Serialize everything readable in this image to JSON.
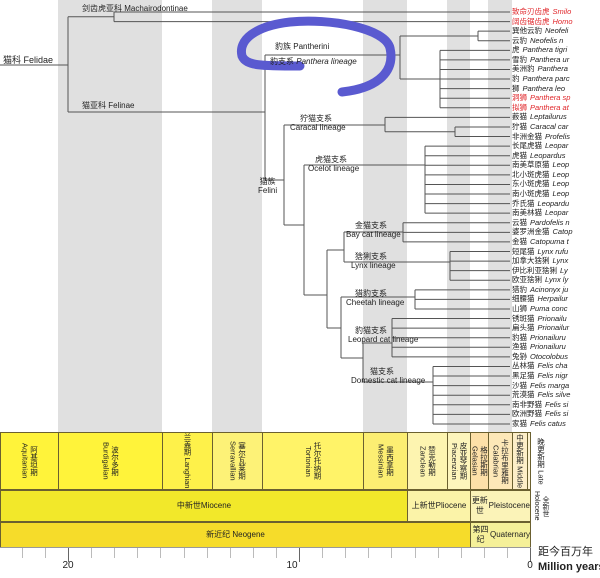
{
  "tree": {
    "root": {
      "zh": "猫科",
      "en": "Felidae"
    },
    "machairodontinae": {
      "zh": "剑齿虎亚科",
      "en": "Machairodontinae"
    },
    "felinae": {
      "zh": "猫亚科",
      "en": "Felinae"
    },
    "pantherini": {
      "zh": "豹族",
      "en": "Pantherini"
    },
    "panthera_lineage": {
      "zh": "豹支系",
      "en": "Panthera lineage"
    },
    "felini": {
      "zh": "猫族",
      "en": "Felini"
    },
    "caracal": {
      "zh": "狞猫支系",
      "en": "Caracal lineage"
    },
    "ocelot": {
      "zh": "虎猫支系",
      "en": "Ocelot lineage"
    },
    "baycat": {
      "zh": "金猫支系",
      "en": "Bay cat lineage"
    },
    "lynx": {
      "zh": "猞猁支系",
      "en": "Lynx lineage"
    },
    "cheetah": {
      "zh": "猎豹支系",
      "en": "Cheetah lineage"
    },
    "leopardcat": {
      "zh": "豹猫支系",
      "en": "Leopard cat lineage"
    },
    "domestic": {
      "zh": "猫支系",
      "en": "Domestic cat lineage"
    }
  },
  "species": [
    {
      "zh": "致命刃齿虎",
      "la": "Smilo",
      "extinct": true
    },
    {
      "zh": "阔齿锯齿虎",
      "la": "Homo",
      "extinct": true
    },
    {
      "zh": "巽他云豹",
      "la": "Neofeli",
      "extinct": false
    },
    {
      "zh": "云豹",
      "la": "Neofelis n",
      "extinct": false
    },
    {
      "zh": "虎",
      "la": "Panthera tigri",
      "extinct": false
    },
    {
      "zh": "雪豹",
      "la": "Panthera ur",
      "extinct": false
    },
    {
      "zh": "美洲豹",
      "la": "Panthera",
      "extinct": false
    },
    {
      "zh": "豹",
      "la": "Panthera parc",
      "extinct": false
    },
    {
      "zh": "狮",
      "la": "Panthera leo",
      "extinct": false
    },
    {
      "zh": "洞狮",
      "la": "Panthera sp",
      "extinct": true
    },
    {
      "zh": "拟狮",
      "la": "Panthera at",
      "extinct": true
    },
    {
      "zh": "薮猫",
      "la": "Leptailurus",
      "extinct": false
    },
    {
      "zh": "狞猫",
      "la": "Caracal car",
      "extinct": false
    },
    {
      "zh": "非洲金猫",
      "la": "Profelis",
      "extinct": false
    },
    {
      "zh": "长尾虎猫",
      "la": "Leopar",
      "extinct": false
    },
    {
      "zh": "虎猫",
      "la": "Leopardus",
      "extinct": false
    },
    {
      "zh": "南美草原猫",
      "la": "Leop",
      "extinct": false
    },
    {
      "zh": "北小斑虎猫",
      "la": "Leop",
      "extinct": false
    },
    {
      "zh": "东小斑虎猫",
      "la": "Leop",
      "extinct": false
    },
    {
      "zh": "南小斑虎猫",
      "la": "Leop",
      "extinct": false
    },
    {
      "zh": "乔氏猫",
      "la": "Leopardu",
      "extinct": false
    },
    {
      "zh": "南美林猫",
      "la": "Leopar",
      "extinct": false
    },
    {
      "zh": "云猫",
      "la": "Pardofelis n",
      "extinct": false
    },
    {
      "zh": "婆罗洲金猫",
      "la": "Catop",
      "extinct": false
    },
    {
      "zh": "金猫",
      "la": "Catopuma t",
      "extinct": false
    },
    {
      "zh": "短尾猫",
      "la": "Lynx rufu",
      "extinct": false
    },
    {
      "zh": "加拿大猞猁",
      "la": "Lynx",
      "extinct": false
    },
    {
      "zh": "伊比利亚猞猁",
      "la": "Ly",
      "extinct": false
    },
    {
      "zh": "欧亚猞猁",
      "la": "Lynx ly",
      "extinct": false
    },
    {
      "zh": "猎豹",
      "la": "Acinonyx ju",
      "extinct": false
    },
    {
      "zh": "细腰猫",
      "la": "Herpailur",
      "extinct": false
    },
    {
      "zh": "山狮",
      "la": "Puma conc",
      "extinct": false
    },
    {
      "zh": "锈斑猫",
      "la": "Prionailu",
      "extinct": false
    },
    {
      "zh": "扁头猫",
      "la": "Prionailur",
      "extinct": false
    },
    {
      "zh": "豹猫",
      "la": "Prionailuru",
      "extinct": false
    },
    {
      "zh": "渔猫",
      "la": "Prionailuru",
      "extinct": false
    },
    {
      "zh": "兔狲",
      "la": "Otocolobus",
      "extinct": false
    },
    {
      "zh": "丛林猫",
      "la": "Felis cha",
      "extinct": false
    },
    {
      "zh": "黑足猫",
      "la": "Felis nigr",
      "extinct": false
    },
    {
      "zh": "沙猫",
      "la": "Felis marga",
      "extinct": false
    },
    {
      "zh": "荒漠猫",
      "la": "Felis silve",
      "extinct": false
    },
    {
      "zh": "南非野猫",
      "la": "Felis si",
      "extinct": false
    },
    {
      "zh": "欧洲野猫",
      "la": "Felis si",
      "extinct": false
    },
    {
      "zh": "家猫",
      "la": "Felis catus",
      "extinct": false
    }
  ],
  "timescale": {
    "stages": [
      {
        "zh": "阿基坦期",
        "en": "Aquitanian",
        "color": "#fff33a"
      },
      {
        "zh": "波尔多期",
        "en": "Burdigalian",
        "color": "#fff33a"
      },
      {
        "zh": "兰盖期",
        "en": "Langhian",
        "color": "#fef14a"
      },
      {
        "zh": "塞尔瓦莱期",
        "en": "Serravallian",
        "color": "#fdf277"
      },
      {
        "zh": "托尔托纳期",
        "en": "Tortonian",
        "color": "#fff368"
      },
      {
        "zh": "墨西拿期",
        "en": "Messinian",
        "color": "#fcee72"
      },
      {
        "zh": "赞克勒期",
        "en": "Zanclean",
        "color": "#fdf4b0"
      },
      {
        "zh": "皮亚琴察期",
        "en": "Piacenzian",
        "color": "#fdf5bc"
      },
      {
        "zh": "格拉斯期",
        "en": "Gelasian",
        "color": "#fde0a8"
      },
      {
        "zh": "卡拉布里雅期",
        "en": "Calabrian",
        "color": "#fde8b8"
      },
      {
        "zh": "中更新期",
        "en": "Middle",
        "color": "#fdeec8"
      }
    ],
    "late": {
      "zh": "晚更新期",
      "en": "Late"
    },
    "holocene": {
      "zh": "全新世",
      "en": "Holocene"
    },
    "epochs": [
      {
        "zh": "中新世",
        "en": "Miocene",
        "color": "#f2e82a"
      },
      {
        "zh": "上新世",
        "en": "Pliocene",
        "color": "#fbf3a8"
      },
      {
        "zh": "更新世",
        "en": "Pleistocene",
        "color": "#fbf3b8"
      }
    ],
    "periods": [
      {
        "zh": "新近纪",
        "en": "Neogene",
        "color": "#f6dc2a"
      },
      {
        "zh": "第四纪",
        "en": "Quaternary",
        "color": "#f5f099"
      }
    ],
    "ticks": [
      "20",
      "10",
      "0"
    ],
    "axis_label_zh": "距今百万年",
    "axis_label_en": "Million years a"
  },
  "annotation_color": "#5a5ad0"
}
